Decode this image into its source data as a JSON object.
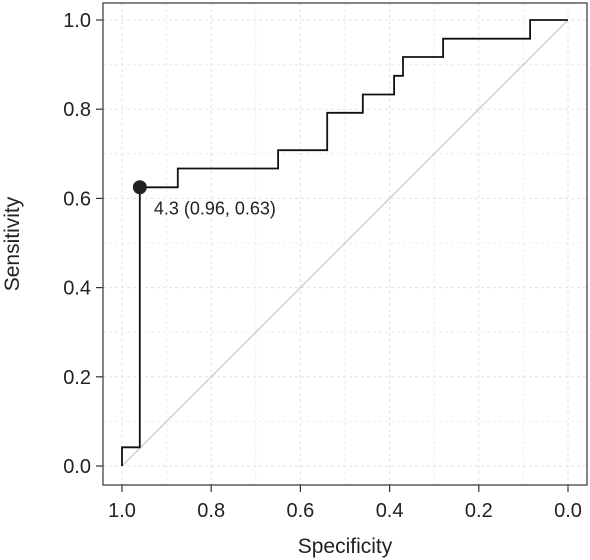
{
  "chart_data": {
    "type": "line",
    "title": "",
    "xlabel": "Specificity",
    "ylabel": "Sensitivity",
    "xlim": [
      1.0,
      0.0
    ],
    "ylim": [
      0.0,
      1.0
    ],
    "x_reversed": true,
    "grid": true,
    "legend": "none",
    "x_ticks": [
      "1.0",
      "0.8",
      "0.6",
      "0.4",
      "0.2",
      "0.0"
    ],
    "y_ticks": [
      "0.0",
      "0.2",
      "0.4",
      "0.6",
      "0.8",
      "1.0"
    ],
    "series": [
      {
        "specificity": [
          1.0,
          1.0,
          0.96,
          0.96,
          0.875,
          0.875,
          0.65,
          0.65,
          0.54,
          0.54,
          0.46,
          0.46,
          0.39,
          0.39,
          0.37,
          0.37,
          0.28,
          0.28,
          0.085,
          0.085,
          0.0
        ],
        "sensitivity": [
          0.0,
          0.042,
          0.042,
          0.625,
          0.625,
          0.667,
          0.667,
          0.708,
          0.708,
          0.792,
          0.792,
          0.833,
          0.833,
          0.875,
          0.875,
          0.917,
          0.917,
          0.958,
          0.958,
          1.0,
          1.0
        ],
        "color": "#111111"
      }
    ],
    "reference_line": {
      "from": [
        1.0,
        0.0
      ],
      "to": [
        0.0,
        1.0
      ],
      "color": "#bbbbbb"
    },
    "highlight_point": {
      "specificity": 0.96,
      "sensitivity": 0.625,
      "color": "#222222"
    },
    "annotation": "4.3 (0.96, 0.63)"
  }
}
